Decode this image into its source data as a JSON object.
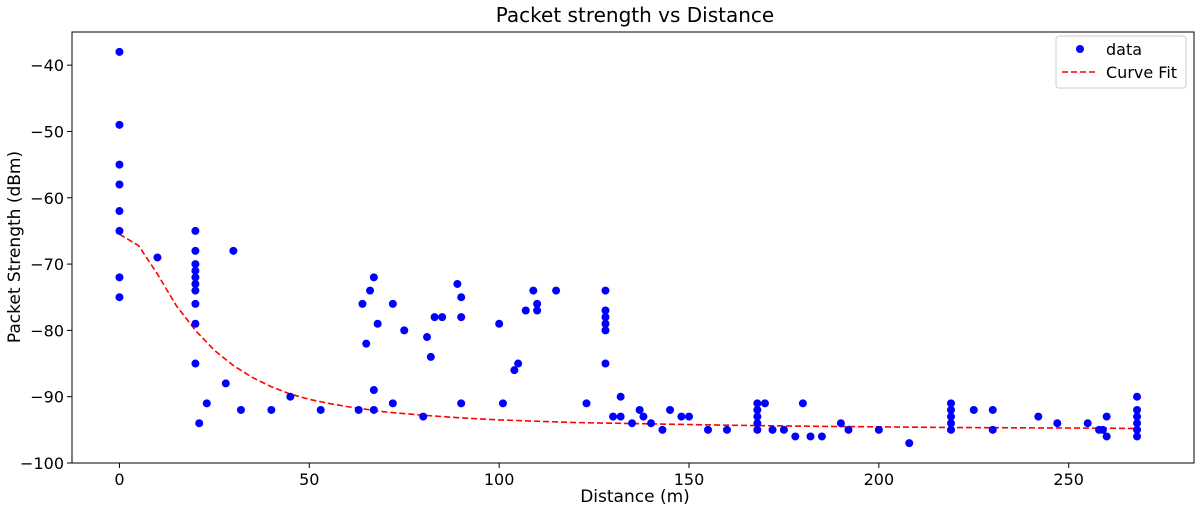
{
  "chart_data": {
    "type": "scatter",
    "title": "Packet strength vs Distance",
    "xlabel": "Distance (m)",
    "ylabel": "Packet Strength (dBm)",
    "xlim": [
      -12.5,
      283
    ],
    "ylim": [
      -100,
      -35
    ],
    "xticks": [
      0,
      50,
      100,
      150,
      200,
      250
    ],
    "yticks": [
      -100,
      -90,
      -80,
      -70,
      -60,
      -50,
      -40
    ],
    "xtick_labels": [
      "0",
      "50",
      "100",
      "150",
      "200",
      "250"
    ],
    "ytick_labels": [
      "−100",
      "−90",
      "−80",
      "−70",
      "−60",
      "−50",
      "−40"
    ],
    "grid": false,
    "legend_position": "top-right",
    "legend": [
      {
        "label": "data",
        "marker": "circle",
        "color": "#0000ff"
      },
      {
        "label": "Curve Fit",
        "line": "dashed",
        "color": "#ff0000"
      }
    ],
    "series": [
      {
        "name": "data",
        "kind": "scatter",
        "color": "#0000ff",
        "points": [
          [
            0,
            -38
          ],
          [
            0,
            -49
          ],
          [
            0,
            -55
          ],
          [
            0,
            -58
          ],
          [
            0,
            -62
          ],
          [
            0,
            -65
          ],
          [
            0,
            -72
          ],
          [
            0,
            -75
          ],
          [
            10,
            -69
          ],
          [
            20,
            -65
          ],
          [
            20,
            -68
          ],
          [
            20,
            -70
          ],
          [
            20,
            -71
          ],
          [
            20,
            -72
          ],
          [
            20,
            -73
          ],
          [
            20,
            -74
          ],
          [
            20,
            -76
          ],
          [
            20,
            -79
          ],
          [
            20,
            -85
          ],
          [
            21,
            -94
          ],
          [
            23,
            -91
          ],
          [
            28,
            -88
          ],
          [
            30,
            -68
          ],
          [
            32,
            -92
          ],
          [
            40,
            -92
          ],
          [
            45,
            -90
          ],
          [
            53,
            -92
          ],
          [
            63,
            -92
          ],
          [
            64,
            -76
          ],
          [
            65,
            -82
          ],
          [
            66,
            -74
          ],
          [
            67,
            -72
          ],
          [
            67,
            -89
          ],
          [
            67,
            -92
          ],
          [
            68,
            -79
          ],
          [
            72,
            -76
          ],
          [
            72,
            -91
          ],
          [
            75,
            -80
          ],
          [
            80,
            -93
          ],
          [
            81,
            -81
          ],
          [
            82,
            -84
          ],
          [
            83,
            -78
          ],
          [
            85,
            -78
          ],
          [
            89,
            -73
          ],
          [
            90,
            -75
          ],
          [
            90,
            -78
          ],
          [
            90,
            -91
          ],
          [
            100,
            -79
          ],
          [
            101,
            -91
          ],
          [
            104,
            -86
          ],
          [
            105,
            -85
          ],
          [
            107,
            -77
          ],
          [
            109,
            -74
          ],
          [
            110,
            -76
          ],
          [
            110,
            -77
          ],
          [
            115,
            -74
          ],
          [
            123,
            -91
          ],
          [
            128,
            -74
          ],
          [
            128,
            -77
          ],
          [
            128,
            -78
          ],
          [
            128,
            -79
          ],
          [
            128,
            -80
          ],
          [
            128,
            -85
          ],
          [
            130,
            -93
          ],
          [
            132,
            -90
          ],
          [
            132,
            -93
          ],
          [
            135,
            -94
          ],
          [
            137,
            -92
          ],
          [
            138,
            -93
          ],
          [
            140,
            -94
          ],
          [
            143,
            -95
          ],
          [
            145,
            -92
          ],
          [
            148,
            -93
          ],
          [
            150,
            -93
          ],
          [
            155,
            -95
          ],
          [
            160,
            -95
          ],
          [
            168,
            -91
          ],
          [
            168,
            -92
          ],
          [
            168,
            -93
          ],
          [
            168,
            -94
          ],
          [
            168,
            -95
          ],
          [
            170,
            -91
          ],
          [
            172,
            -95
          ],
          [
            175,
            -95
          ],
          [
            178,
            -96
          ],
          [
            180,
            -91
          ],
          [
            182,
            -96
          ],
          [
            185,
            -96
          ],
          [
            190,
            -94
          ],
          [
            192,
            -95
          ],
          [
            200,
            -95
          ],
          [
            208,
            -97
          ],
          [
            219,
            -91
          ],
          [
            219,
            -92
          ],
          [
            219,
            -93
          ],
          [
            219,
            -94
          ],
          [
            219,
            -95
          ],
          [
            225,
            -92
          ],
          [
            230,
            -92
          ],
          [
            230,
            -95
          ],
          [
            242,
            -93
          ],
          [
            247,
            -94
          ],
          [
            255,
            -94
          ],
          [
            258,
            -95
          ],
          [
            259,
            -95
          ],
          [
            260,
            -93
          ],
          [
            260,
            -96
          ],
          [
            268,
            -90
          ],
          [
            268,
            -92
          ],
          [
            268,
            -93
          ],
          [
            268,
            -94
          ],
          [
            268,
            -95
          ],
          [
            268,
            -96
          ]
        ]
      },
      {
        "name": "Curve Fit",
        "kind": "line",
        "style": "dashed",
        "color": "#ff0000",
        "points": [
          [
            0,
            -65.5
          ],
          [
            5,
            -67.2
          ],
          [
            10,
            -71.5
          ],
          [
            15,
            -76.3
          ],
          [
            20,
            -80.0
          ],
          [
            25,
            -83.0
          ],
          [
            30,
            -85.3
          ],
          [
            35,
            -87.1
          ],
          [
            40,
            -88.5
          ],
          [
            45,
            -89.6
          ],
          [
            50,
            -90.4
          ],
          [
            55,
            -91.0
          ],
          [
            60,
            -91.5
          ],
          [
            70,
            -92.3
          ],
          [
            80,
            -92.8
          ],
          [
            90,
            -93.2
          ],
          [
            100,
            -93.5
          ],
          [
            120,
            -93.9
          ],
          [
            140,
            -94.1
          ],
          [
            160,
            -94.3
          ],
          [
            180,
            -94.45
          ],
          [
            200,
            -94.55
          ],
          [
            220,
            -94.65
          ],
          [
            240,
            -94.7
          ],
          [
            260,
            -94.75
          ],
          [
            268,
            -94.8
          ]
        ]
      }
    ]
  }
}
